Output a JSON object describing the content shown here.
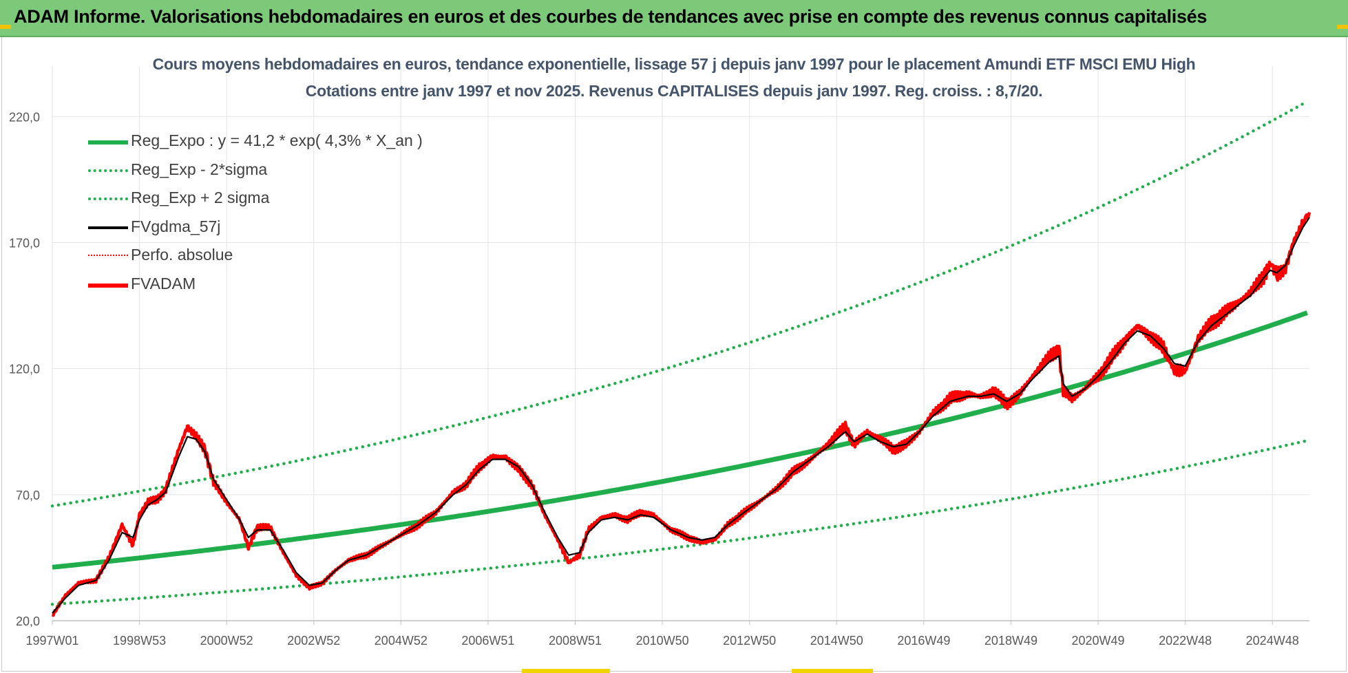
{
  "banner": {
    "title": "ADAM Informe. Valorisations hebdomadaires en euros et des courbes de tendances avec prise en compte des revenus connus capitalisés"
  },
  "colors": {
    "banner_bg": "#7dc97a",
    "reg_green": "#1fae4b",
    "fv_red": "#ff0000",
    "gdma_black": "#000000",
    "title_text": "#44546a",
    "grid": "#e3e3e3"
  },
  "chart_data": {
    "type": "line",
    "title": "Cours moyens hebdomadaires en euros, tendance exponentielle, lissage 57 j depuis janv 1997 pour le placement Amundi ETF MSCI EMU High",
    "subtitle": "Cotations entre janv 1997 et nov 2025. Revenus CAPITALISES depuis janv 1997. Reg. croiss. : 8,7/20.",
    "xlabel": "",
    "ylabel": "",
    "ylim": [
      20,
      240
    ],
    "xlim_years": [
      1997.0,
      2025.85
    ],
    "y_ticks": [
      20,
      70,
      120,
      170,
      220
    ],
    "y_tick_labels": [
      "20,0",
      "70,0",
      "120,0",
      "170,0",
      "220,0"
    ],
    "x_tick_labels": [
      "1997W01",
      "1998W53",
      "2000W52",
      "2002W52",
      "2004W52",
      "2006W51",
      "2008W51",
      "2010W50",
      "2012W50",
      "2014W50",
      "2016W49",
      "2018W49",
      "2020W49",
      "2022W48",
      "2024W48"
    ],
    "x_tick_years": [
      1997.0,
      1999.0,
      2001.0,
      2003.0,
      2005.0,
      2007.0,
      2009.0,
      2011.0,
      2013.0,
      2015.0,
      2017.0,
      2019.0,
      2021.0,
      2023.0,
      2025.0
    ],
    "grid": true,
    "legend_position": "top-left",
    "legend": [
      {
        "label": "Reg_Expo : y = 41,2 * exp( 4,3% *  X_an )",
        "color": "#1fae4b",
        "style": "solid-thick"
      },
      {
        "label": "Reg_Exp - 2*sigma",
        "color": "#1fae4b",
        "style": "dotted"
      },
      {
        "label": "Reg_Exp + 2 sigma",
        "color": "#1fae4b",
        "style": "dotted"
      },
      {
        "label": "FVgdma_57j",
        "color": "#000000",
        "style": "solid"
      },
      {
        "label": "Perfo. absolue",
        "color": "#ff0000",
        "style": "dotted-thin"
      },
      {
        "label": "FVADAM",
        "color": "#ff0000",
        "style": "solid-thick"
      }
    ],
    "regression": {
      "a": 41.2,
      "rate": 0.043
    },
    "band_lower": {
      "a": 26.5,
      "rate": 0.043
    },
    "band_upper": {
      "a": 65.5,
      "rate": 0.043
    },
    "series": [
      {
        "name": "FVADAM",
        "years": [
          1997.0,
          1997.3,
          1997.6,
          1998.0,
          1998.3,
          1998.6,
          1998.85,
          1999.0,
          1999.2,
          1999.4,
          1999.6,
          1999.9,
          2000.1,
          2000.3,
          2000.5,
          2000.7,
          2001.0,
          2001.3,
          2001.5,
          2001.7,
          2002.0,
          2002.3,
          2002.6,
          2002.9,
          2003.2,
          2003.5,
          2003.8,
          2004.2,
          2004.6,
          2005.0,
          2005.4,
          2005.8,
          2006.2,
          2006.5,
          2006.8,
          2007.1,
          2007.4,
          2007.7,
          2008.0,
          2008.3,
          2008.6,
          2008.85,
          2009.1,
          2009.3,
          2009.6,
          2009.9,
          2010.2,
          2010.5,
          2010.8,
          2011.2,
          2011.6,
          2011.9,
          2012.2,
          2012.5,
          2012.8,
          2013.2,
          2013.6,
          2014.0,
          2014.4,
          2014.8,
          2015.2,
          2015.4,
          2015.7,
          2016.0,
          2016.3,
          2016.6,
          2016.9,
          2017.2,
          2017.6,
          2018.0,
          2018.3,
          2018.6,
          2018.9,
          2019.2,
          2019.5,
          2019.9,
          2020.1,
          2020.2,
          2020.4,
          2020.7,
          2021.0,
          2021.3,
          2021.6,
          2021.9,
          2022.2,
          2022.5,
          2022.75,
          2023.0,
          2023.3,
          2023.6,
          2023.9,
          2024.2,
          2024.5,
          2024.8,
          2024.95,
          2025.1,
          2025.3,
          2025.5,
          2025.7,
          2025.85
        ],
        "values": [
          22,
          30,
          35,
          36,
          45,
          58,
          50,
          62,
          67,
          68,
          72,
          88,
          97,
          93,
          88,
          75,
          67,
          60,
          49,
          57,
          57,
          47,
          38,
          33,
          35,
          40,
          44,
          46,
          50,
          54,
          58,
          63,
          71,
          74,
          81,
          85,
          85,
          80,
          74,
          62,
          52,
          43,
          46,
          56,
          61,
          62,
          60,
          63,
          62,
          56,
          53,
          51,
          52,
          58,
          62,
          67,
          72,
          79,
          84,
          90,
          97,
          90,
          95,
          92,
          88,
          90,
          95,
          102,
          108,
          110,
          109,
          111,
          106,
          110,
          117,
          125,
          128,
          111,
          108,
          112,
          117,
          124,
          131,
          137,
          133,
          128,
          119,
          119,
          132,
          138,
          142,
          146,
          150,
          157,
          162,
          157,
          160,
          171,
          178,
          182
        ]
      },
      {
        "name": "FVgdma_57j",
        "years": [
          1997.0,
          1997.3,
          1997.6,
          1998.0,
          1998.3,
          1998.6,
          1998.85,
          1999.0,
          1999.2,
          1999.4,
          1999.6,
          1999.9,
          2000.1,
          2000.3,
          2000.5,
          2000.7,
          2001.0,
          2001.3,
          2001.5,
          2001.7,
          2002.0,
          2002.3,
          2002.6,
          2002.9,
          2003.2,
          2003.5,
          2003.8,
          2004.2,
          2004.6,
          2005.0,
          2005.4,
          2005.8,
          2006.2,
          2006.5,
          2006.8,
          2007.1,
          2007.4,
          2007.7,
          2008.0,
          2008.3,
          2008.6,
          2008.85,
          2009.1,
          2009.3,
          2009.6,
          2009.9,
          2010.2,
          2010.5,
          2010.8,
          2011.2,
          2011.6,
          2011.9,
          2012.2,
          2012.5,
          2012.8,
          2013.2,
          2013.6,
          2014.0,
          2014.4,
          2014.8,
          2015.2,
          2015.4,
          2015.7,
          2016.0,
          2016.3,
          2016.6,
          2016.9,
          2017.2,
          2017.6,
          2018.0,
          2018.3,
          2018.6,
          2018.9,
          2019.2,
          2019.5,
          2019.9,
          2020.1,
          2020.2,
          2020.4,
          2020.7,
          2021.0,
          2021.3,
          2021.6,
          2021.9,
          2022.2,
          2022.5,
          2022.75,
          2023.0,
          2023.3,
          2023.6,
          2023.9,
          2024.2,
          2024.5,
          2024.8,
          2024.95,
          2025.1,
          2025.3,
          2025.5,
          2025.7,
          2025.85
        ],
        "values": [
          23,
          29,
          34,
          36,
          44,
          55,
          53,
          60,
          66,
          68,
          71,
          85,
          93,
          92,
          87,
          76,
          68,
          60,
          53,
          56,
          56,
          48,
          39,
          34,
          35,
          40,
          44,
          46,
          50,
          54,
          58,
          63,
          70,
          74,
          80,
          84,
          84,
          81,
          74,
          63,
          53,
          46,
          47,
          55,
          60,
          61,
          60,
          62,
          61,
          56,
          53,
          52,
          53,
          58,
          62,
          67,
          72,
          79,
          84,
          89,
          95,
          91,
          94,
          91,
          89,
          90,
          95,
          101,
          107,
          109,
          109,
          110,
          107,
          110,
          116,
          123,
          125,
          114,
          109,
          112,
          117,
          123,
          130,
          135,
          133,
          128,
          122,
          121,
          131,
          137,
          141,
          145,
          149,
          156,
          159,
          158,
          161,
          169,
          176,
          180
        ]
      }
    ]
  }
}
